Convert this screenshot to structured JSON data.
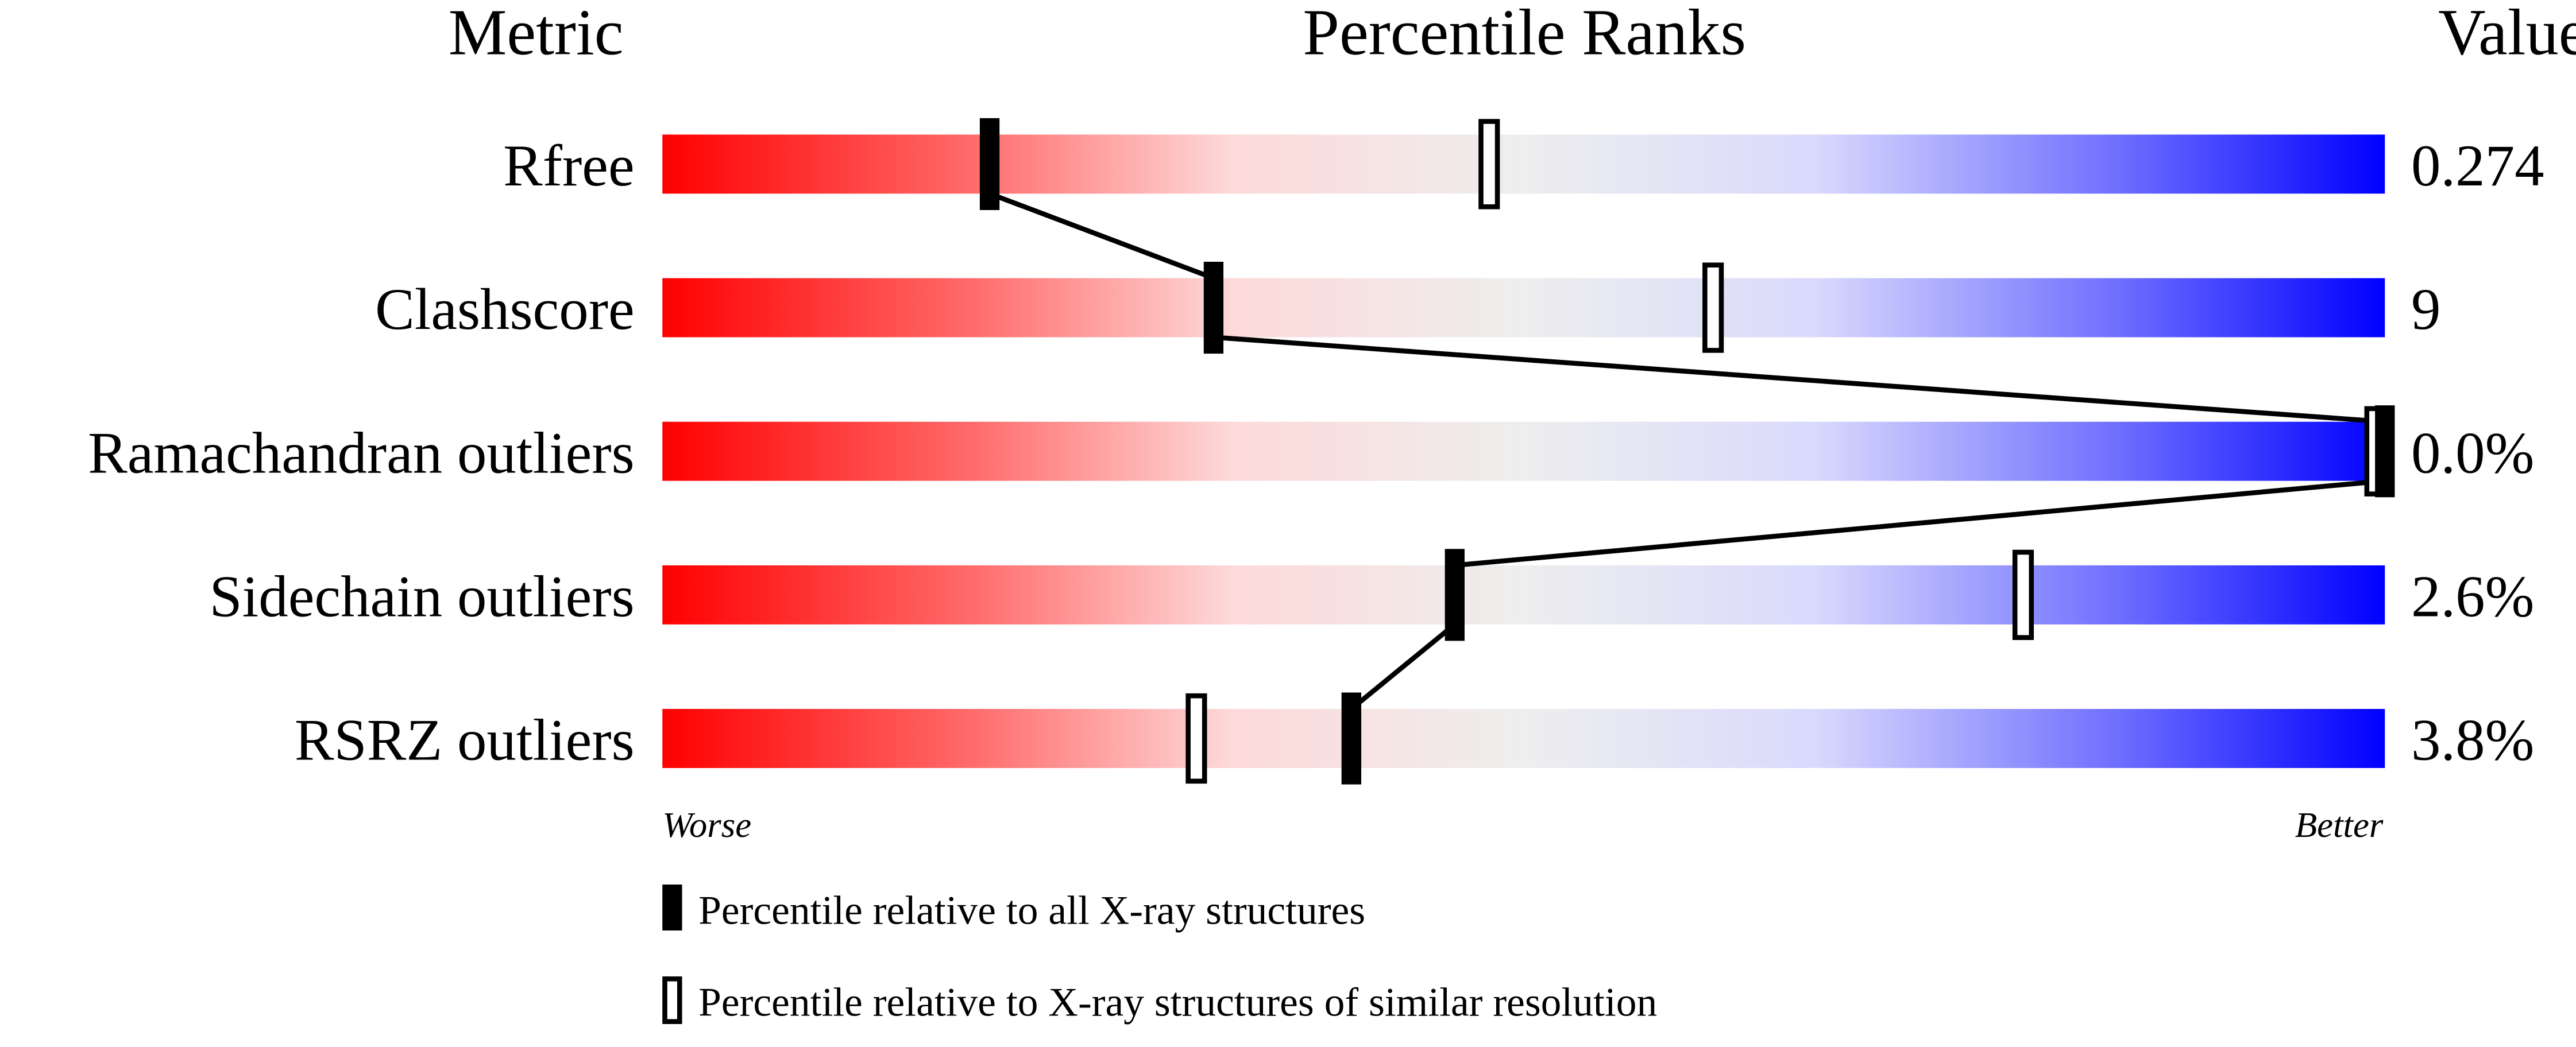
{
  "chart_data": {
    "type": "percentile-slider",
    "headers": {
      "metric": "Metric",
      "ranks": "Percentile Ranks",
      "value": "Value"
    },
    "axis": {
      "left": "Worse",
      "right": "Better",
      "range": [
        0,
        100
      ]
    },
    "rows": [
      {
        "metric": "Rfree",
        "value": "0.274",
        "percentile_all": 19,
        "percentile_similar": 48
      },
      {
        "metric": "Clashscore",
        "value": "9",
        "percentile_all": 32,
        "percentile_similar": 61
      },
      {
        "metric": "Ramachandran outliers",
        "value": "0.0%",
        "percentile_all": 100,
        "percentile_similar": 100
      },
      {
        "metric": "Sidechain outliers",
        "value": "2.6%",
        "percentile_all": 46,
        "percentile_similar": 79
      },
      {
        "metric": "RSRZ outliers",
        "value": "3.8%",
        "percentile_all": 40,
        "percentile_similar": 31
      }
    ],
    "legend": [
      {
        "marker": "filled",
        "label": "Percentile relative to all X-ray structures"
      },
      {
        "marker": "open",
        "label": "Percentile relative to X-ray structures of similar resolution"
      }
    ],
    "gradient_colors": [
      "#ff0000",
      "#ff6b6b",
      "#fdd9d9",
      "#eeeeee",
      "#d9d9fd",
      "#6b6bff",
      "#0000ff"
    ]
  }
}
